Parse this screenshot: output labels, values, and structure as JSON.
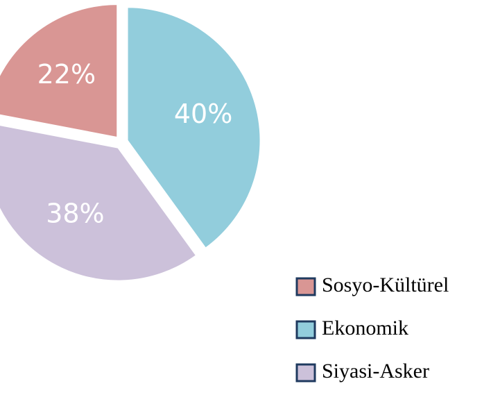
{
  "chart_data": {
    "type": "pie",
    "categories": [
      "Sosyo-Kültürel",
      "Ekonomik",
      "Siyasi-Asker"
    ],
    "values": [
      22,
      40,
      38
    ],
    "value_labels": [
      "22%",
      "40%",
      "38%"
    ],
    "colors": [
      "#d99694",
      "#92cddc",
      "#ccc1da"
    ],
    "legend": "bottom-right"
  }
}
